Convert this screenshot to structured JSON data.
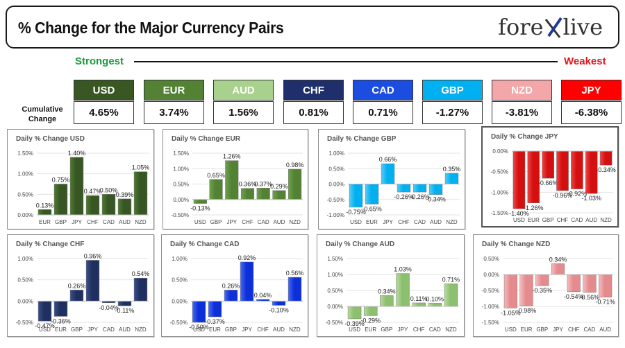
{
  "header": {
    "title": "% Change for the Major Currency Pairs",
    "logo_left": "fore",
    "logo_right": "live"
  },
  "scale": {
    "strongest": "Strongest",
    "weakest": "Weakest"
  },
  "cumulative_label": "Cumulative Change",
  "currencies": [
    {
      "code": "USD",
      "value": "4.65%",
      "color": "#385723"
    },
    {
      "code": "EUR",
      "value": "3.74%",
      "color": "#548235"
    },
    {
      "code": "AUD",
      "value": "1.56%",
      "color": "#a9d18e"
    },
    {
      "code": "CHF",
      "value": "0.81%",
      "color": "#1f2f6b"
    },
    {
      "code": "CAD",
      "value": "0.71%",
      "color": "#1a4de0"
    },
    {
      "code": "GBP",
      "value": "-1.27%",
      "color": "#00b0f0"
    },
    {
      "code": "NZD",
      "value": "-3.81%",
      "color": "#f4a7a9"
    },
    {
      "code": "JPY",
      "value": "-6.38%",
      "color": "#ff0000"
    }
  ],
  "chart_data": [
    {
      "type": "bar",
      "title": "Daily % Change USD",
      "categories": [
        "EUR",
        "GBP",
        "JPY",
        "CHF",
        "CAD",
        "AUD",
        "NZD"
      ],
      "values": [
        0.13,
        0.75,
        1.4,
        0.47,
        0.5,
        0.39,
        1.05
      ],
      "labels": [
        "0.13%",
        "0.75%",
        "1.40%",
        "0.47%",
        "0.50%",
        "0.39%",
        "1.05%"
      ],
      "yticks": [
        0,
        0.5,
        1,
        1.5
      ],
      "ytick_labels": [
        "0.00%",
        "0.50%",
        "1.00%",
        "1.50%"
      ],
      "ylim": [
        0,
        1.5
      ],
      "color": "#375623",
      "highlight": "#4e7a32"
    },
    {
      "type": "bar",
      "title": "Daily % Change EUR",
      "categories": [
        "USD",
        "GBP",
        "JPY",
        "CHF",
        "CAD",
        "AUD",
        "NZD"
      ],
      "values": [
        -0.13,
        0.65,
        1.26,
        0.36,
        0.37,
        0.29,
        0.98
      ],
      "labels": [
        "-0.13%",
        "0.65%",
        "1.26%",
        "0.36%",
        "0.37%",
        "0.29%",
        "0.98%"
      ],
      "yticks": [
        -0.5,
        0,
        0.5,
        1,
        1.5
      ],
      "ytick_labels": [
        "-0.50%",
        "0.00%",
        "0.50%",
        "1.00%",
        "1.50%"
      ],
      "ylim": [
        -0.5,
        1.5
      ],
      "color": "#548235",
      "highlight": "#6ea34a"
    },
    {
      "type": "bar",
      "title": "Daily % Change GBP",
      "categories": [
        "USD",
        "EUR",
        "JPY",
        "CHF",
        "CAD",
        "AUD",
        "NZD"
      ],
      "values": [
        -0.75,
        -0.65,
        0.66,
        -0.26,
        -0.26,
        -0.34,
        0.35
      ],
      "labels": [
        "-0.75%",
        "-0.65%",
        "0.66%",
        "-0.26%",
        "-0.26%",
        "-0.34%",
        "0.35%"
      ],
      "yticks": [
        -1,
        -0.5,
        0,
        0.5,
        1
      ],
      "ytick_labels": [
        "-1.00%",
        "-0.50%",
        "0.00%",
        "0.50%",
        "1.00%"
      ],
      "ylim": [
        -1,
        1
      ],
      "color": "#00b0f0",
      "highlight": "#55cdf6"
    },
    {
      "type": "bar",
      "title": "Daily % Change JPY",
      "categories": [
        "USD",
        "EUR",
        "GBP",
        "CHF",
        "CAD",
        "AUD",
        "NZD"
      ],
      "values": [
        -1.4,
        -1.26,
        -0.66,
        -0.96,
        -0.92,
        -1.03,
        -0.34
      ],
      "labels": [
        "-1.40%",
        "-1.26%",
        "-0.66%",
        "-0.96%",
        "-0.92%",
        "-1.03%",
        "-0.34%"
      ],
      "yticks": [
        -1.5,
        -1,
        -0.5,
        0
      ],
      "ytick_labels": [
        "-1.50%",
        "-1.00%",
        "-0.50%",
        "0.00%"
      ],
      "ylim": [
        -1.5,
        0
      ],
      "color": "#d40f0f",
      "highlight": "#f04545"
    },
    {
      "type": "bar",
      "title": "Daily % Change CHF",
      "categories": [
        "USD",
        "EUR",
        "GBP",
        "JPY",
        "CAD",
        "AUD",
        "NZD"
      ],
      "values": [
        -0.47,
        -0.36,
        0.26,
        0.96,
        -0.04,
        -0.11,
        0.54
      ],
      "labels": [
        "-0.47%",
        "-0.36%",
        "0.26%",
        "0.96%",
        "-0.04%",
        "-0.11%",
        "0.54%"
      ],
      "yticks": [
        -0.5,
        0,
        0.5,
        1
      ],
      "ytick_labels": [
        "-0.50%",
        "0.00%",
        "0.50%",
        "1.00%"
      ],
      "ylim": [
        -0.5,
        1
      ],
      "color": "#1f2f5f",
      "highlight": "#3a4f8a"
    },
    {
      "type": "bar",
      "title": "Daily % Change CAD",
      "categories": [
        "USD",
        "EUR",
        "GBP",
        "JPY",
        "CHF",
        "AUD",
        "NZD"
      ],
      "values": [
        -0.5,
        -0.37,
        0.26,
        0.92,
        0.04,
        -0.1,
        0.56
      ],
      "labels": [
        "-0.50%",
        "-0.37%",
        "0.26%",
        "0.92%",
        "0.04%",
        "-0.10%",
        "0.56%"
      ],
      "yticks": [
        -0.5,
        0,
        0.5,
        1
      ],
      "ytick_labels": [
        "-0.50%",
        "0.00%",
        "0.50%",
        "1.00%"
      ],
      "ylim": [
        -0.5,
        1
      ],
      "color": "#0d2fd8",
      "highlight": "#4a6cf0"
    },
    {
      "type": "bar",
      "title": "Daily % Change AUD",
      "categories": [
        "USD",
        "EUR",
        "GBP",
        "JPY",
        "CHF",
        "CAD",
        "NZD"
      ],
      "values": [
        -0.39,
        -0.29,
        0.34,
        1.03,
        0.11,
        0.1,
        0.71
      ],
      "labels": [
        "-0.39%",
        "-0.29%",
        "0.34%",
        "1.03%",
        "0.11%",
        "0.10%",
        "0.71%"
      ],
      "yticks": [
        -0.5,
        0,
        0.5,
        1,
        1.5
      ],
      "ytick_labels": [
        "-0.50%",
        "0.00%",
        "0.50%",
        "1.00%",
        "1.50%"
      ],
      "ylim": [
        -0.5,
        1.5
      ],
      "color": "#8cbf6e",
      "highlight": "#b9dca2"
    },
    {
      "type": "bar",
      "title": "Daily % Change NZD",
      "categories": [
        "USD",
        "EUR",
        "GBP",
        "JPY",
        "CHF",
        "CAD",
        "AUD"
      ],
      "values": [
        -1.05,
        -0.98,
        -0.35,
        0.34,
        -0.54,
        -0.56,
        -0.71
      ],
      "labels": [
        "-1.05%",
        "-0.98%",
        "-0.35%",
        "0.34%",
        "-0.54%",
        "-0.56%",
        "-0.71%"
      ],
      "yticks": [
        -1.5,
        -1,
        -0.5,
        0,
        0.5
      ],
      "ytick_labels": [
        "-1.50%",
        "-1.00%",
        "-0.50%",
        "0.00%",
        "0.50%"
      ],
      "ylim": [
        -1.5,
        0.5
      ],
      "color": "#e58b8e",
      "highlight": "#f6bcbd"
    }
  ]
}
